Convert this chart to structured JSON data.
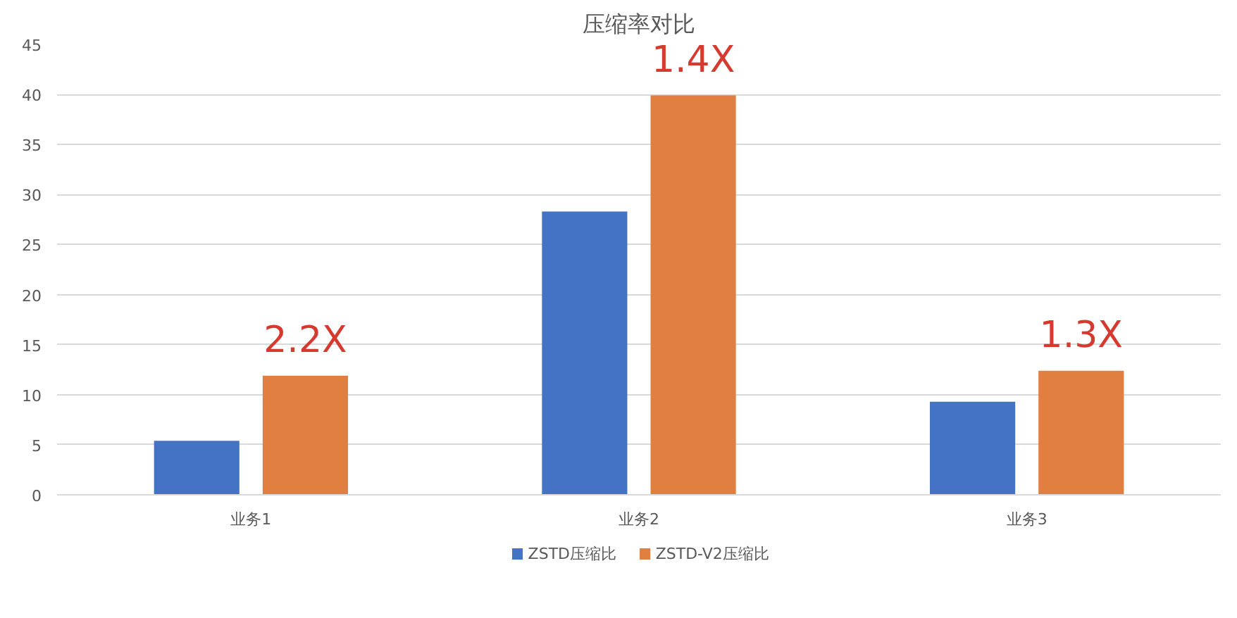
{
  "chart_data": {
    "type": "bar",
    "title": "压缩率对比",
    "categories": [
      "业务1",
      "业务2",
      "业务3"
    ],
    "series": [
      {
        "name": "ZSTD压缩比",
        "color": "#4472c4",
        "values": [
          5.4,
          28.3,
          9.3
        ]
      },
      {
        "name": "ZSTD-V2压缩比",
        "color": "#e07f3f",
        "values": [
          11.9,
          39.9,
          12.4
        ]
      }
    ],
    "ylim": [
      0,
      45
    ],
    "yticks": [
      0,
      5,
      10,
      15,
      20,
      25,
      30,
      35,
      40,
      45
    ],
    "grid": "y",
    "legend": "bottom",
    "annotations": [
      "2.2X",
      "1.4X",
      "1.3X"
    ]
  }
}
